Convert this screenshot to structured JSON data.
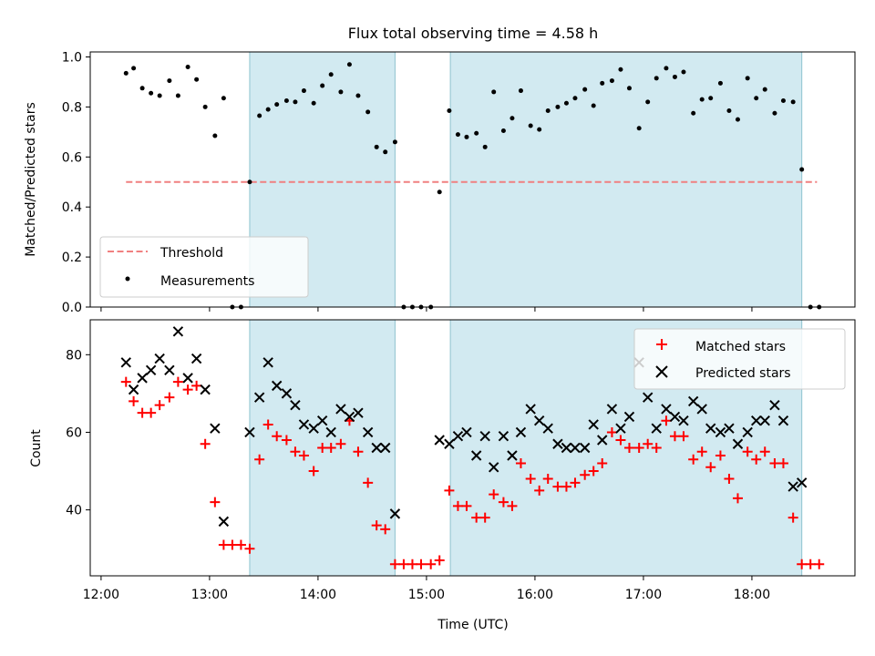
{
  "chart_data": [
    {
      "type": "scatter",
      "title": "Flux total observing time = 4.58 h",
      "ylabel": "Matched/Predicted stars",
      "xlabel": "",
      "xlim": [
        11.9,
        18.95
      ],
      "ylim": [
        0.0,
        1.02
      ],
      "yticks": [
        0.0,
        0.2,
        0.4,
        0.6,
        0.8,
        1.0
      ],
      "ytick_labels": [
        "0.0",
        "0.2",
        "0.4",
        "0.6",
        "0.8",
        "1.0"
      ],
      "shaded_intervals": [
        [
          13.37,
          14.71
        ],
        [
          15.22,
          18.46
        ]
      ],
      "shade_color": "#add8e6",
      "threshold": {
        "name": "Threshold",
        "value": 0.5,
        "x_range": [
          12.23,
          18.6
        ],
        "color": "#f08080"
      },
      "legend": {
        "placement": "lower-left",
        "entries": [
          "Threshold",
          "Measurements"
        ]
      },
      "series": [
        {
          "name": "Measurements",
          "color": "#000000",
          "x": [
            12.23,
            12.3,
            12.38,
            12.46,
            12.54,
            12.63,
            12.71,
            12.8,
            12.88,
            12.96,
            13.05,
            13.13,
            13.21,
            13.29,
            13.37,
            13.46,
            13.54,
            13.62,
            13.71,
            13.79,
            13.87,
            13.96,
            14.04,
            14.12,
            14.21,
            14.29,
            14.37,
            14.46,
            14.54,
            14.62,
            14.71,
            14.79,
            14.87,
            14.95,
            15.04,
            15.12,
            15.21,
            15.29,
            15.37,
            15.46,
            15.54,
            15.62,
            15.71,
            15.79,
            15.87,
            15.96,
            16.04,
            16.12,
            16.21,
            16.29,
            16.37,
            16.46,
            16.54,
            16.62,
            16.71,
            16.79,
            16.87,
            16.96,
            17.04,
            17.12,
            17.21,
            17.29,
            17.37,
            17.46,
            17.54,
            17.62,
            17.71,
            17.79,
            17.87,
            17.96,
            18.04,
            18.12,
            18.21,
            18.29,
            18.38,
            18.46,
            18.54,
            18.62
          ],
          "y": [
            0.935,
            0.955,
            0.875,
            0.855,
            0.845,
            0.905,
            0.845,
            0.96,
            0.91,
            0.8,
            0.685,
            0.835,
            0.0,
            0.0,
            0.5,
            0.765,
            0.79,
            0.81,
            0.825,
            0.82,
            0.865,
            0.815,
            0.885,
            0.93,
            0.86,
            0.97,
            0.845,
            0.78,
            0.64,
            0.62,
            0.66,
            0.0,
            0.0,
            0.0,
            0.0,
            0.46,
            0.785,
            0.69,
            0.68,
            0.695,
            0.64,
            0.86,
            0.705,
            0.755,
            0.865,
            0.725,
            0.71,
            0.785,
            0.8,
            0.815,
            0.835,
            0.87,
            0.805,
            0.895,
            0.905,
            0.95,
            0.875,
            0.715,
            0.82,
            0.915,
            0.955,
            0.92,
            0.94,
            0.775,
            0.83,
            0.835,
            0.895,
            0.785,
            0.75,
            0.915,
            0.835,
            0.87,
            0.775,
            0.825,
            0.82,
            0.55,
            0.0,
            0.0
          ]
        }
      ]
    },
    {
      "type": "scatter",
      "title": "",
      "xlabel": "Time (UTC)",
      "ylabel": "Count",
      "xlim": [
        11.9,
        18.95
      ],
      "ylim": [
        23,
        89
      ],
      "xticks": [
        12,
        13,
        14,
        15,
        16,
        17,
        18
      ],
      "xtick_labels": [
        "12:00",
        "13:00",
        "14:00",
        "15:00",
        "16:00",
        "17:00",
        "18:00"
      ],
      "yticks": [
        40,
        60,
        80
      ],
      "ytick_labels": [
        "40",
        "60",
        "80"
      ],
      "shaded_intervals": [
        [
          13.37,
          14.71
        ],
        [
          15.22,
          18.46
        ]
      ],
      "shade_color": "#add8e6",
      "legend": {
        "placement": "top-right",
        "entries": [
          "Matched stars",
          "Predicted stars"
        ]
      },
      "series": [
        {
          "name": "Matched stars",
          "marker": "+",
          "color": "#ff0000",
          "x": [
            12.23,
            12.3,
            12.38,
            12.46,
            12.54,
            12.63,
            12.71,
            12.8,
            12.88,
            12.96,
            13.05,
            13.13,
            13.21,
            13.29,
            13.37,
            13.46,
            13.54,
            13.62,
            13.71,
            13.79,
            13.87,
            13.96,
            14.04,
            14.12,
            14.21,
            14.29,
            14.37,
            14.46,
            14.54,
            14.62,
            14.71,
            14.79,
            14.87,
            14.95,
            15.04,
            15.12,
            15.21,
            15.29,
            15.37,
            15.46,
            15.54,
            15.62,
            15.71,
            15.79,
            15.87,
            15.96,
            16.04,
            16.12,
            16.21,
            16.29,
            16.37,
            16.46,
            16.54,
            16.62,
            16.71,
            16.79,
            16.87,
            16.96,
            17.04,
            17.12,
            17.21,
            17.29,
            17.37,
            17.46,
            17.54,
            17.62,
            17.71,
            17.79,
            17.87,
            17.96,
            18.04,
            18.12,
            18.21,
            18.29,
            18.38,
            18.46,
            18.54,
            18.62
          ],
          "y": [
            73,
            68,
            65,
            65,
            67,
            69,
            73,
            71,
            72,
            57,
            42,
            31,
            31,
            31,
            30,
            53,
            62,
            59,
            58,
            55,
            54,
            50,
            56,
            56,
            57,
            63,
            55,
            47,
            36,
            35,
            26,
            26,
            26,
            26,
            26,
            27,
            45,
            41,
            41,
            38,
            38,
            44,
            42,
            41,
            52,
            48,
            45,
            48,
            46,
            46,
            47,
            49,
            50,
            52,
            60,
            58,
            56,
            56,
            57,
            56,
            63,
            59,
            59,
            53,
            55,
            51,
            54,
            48,
            43,
            55,
            53,
            55,
            52,
            52,
            38,
            26,
            26,
            26
          ]
        },
        {
          "name": "Predicted stars",
          "marker": "x",
          "color": "#000000",
          "x": [
            12.23,
            12.3,
            12.38,
            12.46,
            12.54,
            12.63,
            12.71,
            12.8,
            12.88,
            12.96,
            13.05,
            13.13,
            13.37,
            13.46,
            13.54,
            13.62,
            13.71,
            13.79,
            13.87,
            13.96,
            14.04,
            14.12,
            14.21,
            14.29,
            14.37,
            14.46,
            14.54,
            14.62,
            14.71,
            15.12,
            15.21,
            15.29,
            15.37,
            15.46,
            15.54,
            15.62,
            15.71,
            15.79,
            15.87,
            15.96,
            16.04,
            16.12,
            16.21,
            16.29,
            16.37,
            16.46,
            16.54,
            16.62,
            16.71,
            16.79,
            16.87,
            16.96,
            17.04,
            17.12,
            17.21,
            17.29,
            17.37,
            17.46,
            17.54,
            17.62,
            17.71,
            17.79,
            17.87,
            17.96,
            18.04,
            18.12,
            18.21,
            18.29,
            18.38,
            18.46
          ],
          "y": [
            78,
            71,
            74,
            76,
            79,
            76,
            86,
            74,
            79,
            71,
            61,
            37,
            60,
            69,
            78,
            72,
            70,
            67,
            62,
            61,
            63,
            60,
            66,
            64,
            65,
            60,
            56,
            56,
            39,
            58,
            57,
            59,
            60,
            54,
            59,
            51,
            59,
            54,
            60,
            66,
            63,
            61,
            57,
            56,
            56,
            56,
            62,
            58,
            66,
            61,
            64,
            78,
            69,
            61,
            66,
            64,
            63,
            68,
            66,
            61,
            60,
            61,
            57,
            60,
            63,
            63,
            67,
            63,
            46,
            47
          ]
        }
      ]
    }
  ]
}
